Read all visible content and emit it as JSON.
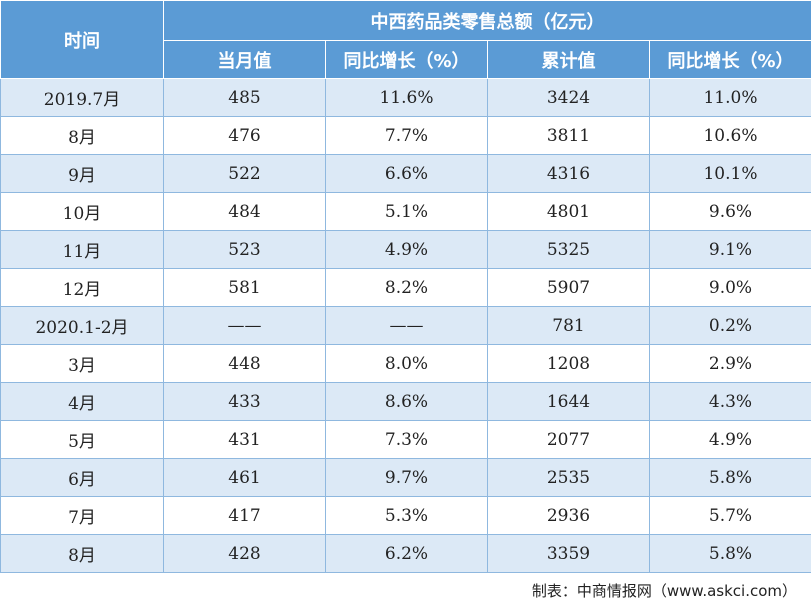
{
  "table": {
    "header": {
      "time": "时间",
      "group": "中西药品类零售总额（亿元）",
      "columns": [
        "当月值",
        "同比增长（%）",
        "累计值",
        "同比增长（%）"
      ]
    },
    "rows": [
      {
        "time": "2019.7月",
        "monthly": "485",
        "monthly_yoy": "11.6%",
        "cumulative": "3424",
        "cumulative_yoy": "11.0%"
      },
      {
        "time": "8月",
        "monthly": "476",
        "monthly_yoy": "7.7%",
        "cumulative": "3811",
        "cumulative_yoy": "10.6%"
      },
      {
        "time": "9月",
        "monthly": "522",
        "monthly_yoy": "6.6%",
        "cumulative": "4316",
        "cumulative_yoy": "10.1%"
      },
      {
        "time": "10月",
        "monthly": "484",
        "monthly_yoy": "5.1%",
        "cumulative": "4801",
        "cumulative_yoy": "9.6%"
      },
      {
        "time": "11月",
        "monthly": "523",
        "monthly_yoy": "4.9%",
        "cumulative": "5325",
        "cumulative_yoy": "9.1%"
      },
      {
        "time": "12月",
        "monthly": "581",
        "monthly_yoy": "8.2%",
        "cumulative": "5907",
        "cumulative_yoy": "9.0%"
      },
      {
        "time": "2020.1-2月",
        "monthly": "——",
        "monthly_yoy": "——",
        "cumulative": "781",
        "cumulative_yoy": "0.2%"
      },
      {
        "time": "3月",
        "monthly": "448",
        "monthly_yoy": "8.0%",
        "cumulative": "1208",
        "cumulative_yoy": "2.9%"
      },
      {
        "time": "4月",
        "monthly": "433",
        "monthly_yoy": "8.6%",
        "cumulative": "1644",
        "cumulative_yoy": "4.3%"
      },
      {
        "time": "5月",
        "monthly": "431",
        "monthly_yoy": "7.3%",
        "cumulative": "2077",
        "cumulative_yoy": "4.9%"
      },
      {
        "time": "6月",
        "monthly": "461",
        "monthly_yoy": "9.7%",
        "cumulative": "2535",
        "cumulative_yoy": "5.8%"
      },
      {
        "time": "7月",
        "monthly": "417",
        "monthly_yoy": "5.3%",
        "cumulative": "2936",
        "cumulative_yoy": "5.7%"
      },
      {
        "time": "8月",
        "monthly": "428",
        "monthly_yoy": "6.2%",
        "cumulative": "3359",
        "cumulative_yoy": "5.8%"
      }
    ]
  },
  "footer": {
    "source": "制表：中商情报网（www.askci.com）"
  },
  "colors": {
    "header_bg": "#5b9bd5",
    "stripe_bg": "#dce9f6",
    "border": "#8fb8df"
  }
}
